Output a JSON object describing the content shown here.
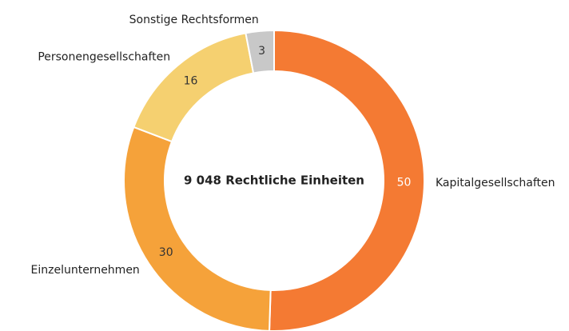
{
  "chart_data": {
    "type": "donut",
    "center_label": "9 048 Rechtliche Einheiten",
    "categories": [
      "Kapitalgesellschaften",
      "Einzelunternehmen",
      "Personengesellschaften",
      "Sonstige Rechtsformen"
    ],
    "values": [
      50,
      30,
      16,
      3
    ],
    "colors": [
      "#f47a33",
      "#f5a23a",
      "#f5d070",
      "#c8c8c8"
    ],
    "label_colors": [
      "#ffffff",
      "#333333",
      "#333333",
      "#333333"
    ]
  }
}
